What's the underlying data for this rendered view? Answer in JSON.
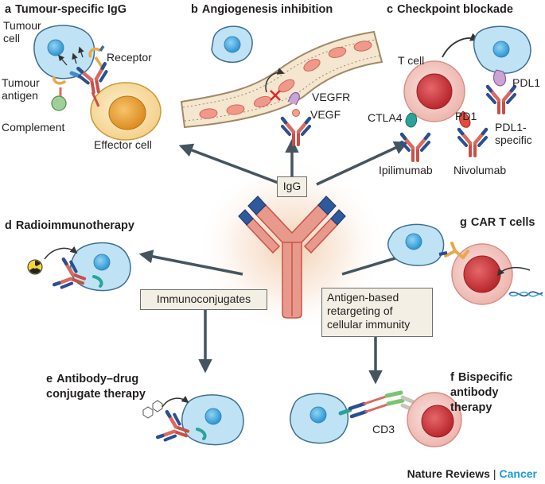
{
  "colors": {
    "arrow": "#455560",
    "tumour_fill": "#bfe3f5",
    "tumour_stroke": "#3f6f8f",
    "nucleus": "#36a8e0",
    "tcell_outer": "#f1c3bd",
    "tcell_inner": "#c9363a",
    "effector_outer": "#f7dfaa",
    "effector_inner": "#e9a33a",
    "antibody_red": "#d96a5f",
    "antibody_blue": "#2b4f8f",
    "vessel_fill": "#f4e6cf",
    "rbc": "#f0998a",
    "box_fill": "#f3efe4",
    "accent_brand": "#1a9bd7"
  },
  "panels": {
    "a": {
      "letter": "a",
      "title": "Tumour-specific IgG",
      "labels": {
        "tumour_cell": "Tumour cell",
        "receptor": "Receptor",
        "tumour_antigen": "Tumour antigen",
        "complement": "Complement",
        "effector_cell": "Effector cell"
      }
    },
    "b": {
      "letter": "b",
      "title": "Angiogenesis inhibition",
      "labels": {
        "vegfr": "VEGFR",
        "vegf": "VEGF"
      }
    },
    "c": {
      "letter": "c",
      "title": "Checkpoint blockade",
      "labels": {
        "t_cell": "T cell",
        "pdl1": "PDL1",
        "ctla4": "CTLA4",
        "pd1": "PD1",
        "pdl1_specific": "PDL1-specific",
        "ipilimumab": "Ipilimumab",
        "nivolumab": "Nivolumab"
      }
    },
    "d": {
      "letter": "d",
      "title": "Radioimmunotherapy"
    },
    "e": {
      "letter": "e",
      "title": "Antibody–drug conjugate therapy"
    },
    "f": {
      "letter": "f",
      "title": "Bispecific antibody therapy",
      "labels": {
        "cd3": "CD3"
      }
    },
    "g": {
      "letter": "g",
      "title": "CAR T cells"
    }
  },
  "center": {
    "igg": "IgG",
    "immunoconjugates": "Immunoconjugates",
    "retargeting": "Antigen-based retargeting of cellular immunity"
  },
  "credit": {
    "journal": "Nature Reviews",
    "separator": "|",
    "section": "Cancer"
  }
}
